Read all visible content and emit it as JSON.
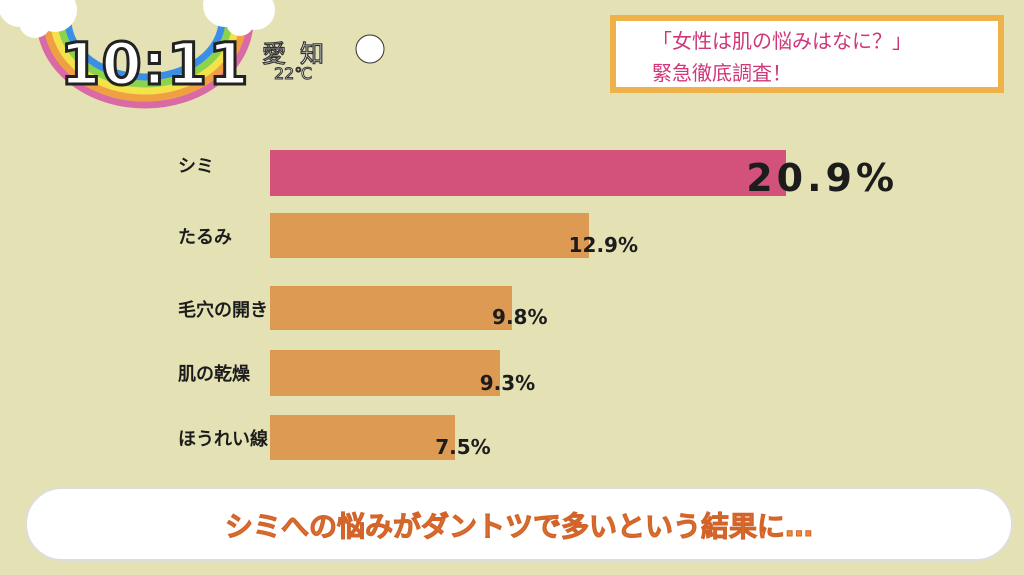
{
  "overlay": {
    "time": "10:11",
    "city": "愛知",
    "temperature": "22℃",
    "weather_icon": "cloud-icon"
  },
  "title": {
    "line1": "「女性は肌の悩みはなに？」",
    "line2": "緊急徹底調査！"
  },
  "caption": "シミへの悩みがダントツで多いという結果に…",
  "colors": {
    "highlight": "#d2527c",
    "bar": "#dc9a52",
    "background": "#e4e2b4"
  },
  "chart_data": {
    "type": "bar",
    "orientation": "horizontal",
    "categories": [
      "シミ",
      "たるみ",
      "毛穴の開き",
      "肌の乾燥",
      "ほうれい線"
    ],
    "values": [
      20.9,
      12.9,
      9.8,
      9.3,
      7.5
    ],
    "value_labels": [
      "20.9%",
      "12.9%",
      "9.8%",
      "9.3%",
      "7.5%"
    ],
    "unit": "%",
    "title": "「女性は肌の悩みはなに？」緊急徹底調査！",
    "xlim": [
      0,
      21
    ],
    "grid": false
  }
}
